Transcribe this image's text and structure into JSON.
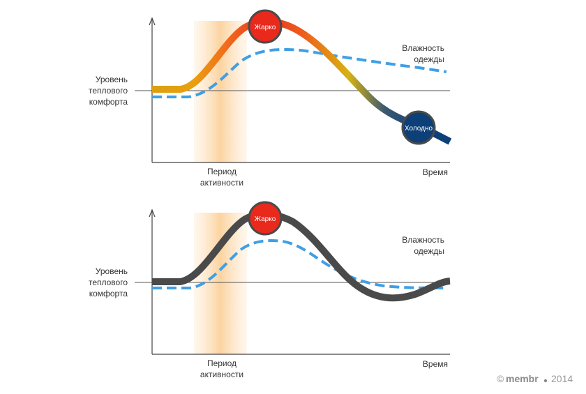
{
  "colors": {
    "axis": "#444444",
    "comfort_line": "#666666",
    "activity_band": "#fcd9a8",
    "humidity": "#3f9fe6",
    "temp_hot": "#e8341f",
    "temp_warm": "#f07a1a",
    "temp_mid": "#d6a312",
    "temp_cold": "#0d3f78",
    "temp_gray": "#4a4a4a",
    "hot_circle": "#e8291c",
    "cold_circle": "#0d3f78",
    "circle_ring": "#4a4a4a"
  },
  "top": {
    "y_label": [
      "Уровень",
      "теплового",
      "комфорта"
    ],
    "x_label": "Время",
    "activity_label": [
      "Период",
      "активности"
    ],
    "humidity_label": [
      "Влажность",
      "одежды"
    ],
    "hot_label": "Жарко",
    "cold_label": "Холодно"
  },
  "bottom": {
    "y_label": [
      "Уровень",
      "теплового",
      "комфорта"
    ],
    "x_label": "Время",
    "activity_label": [
      "Период",
      "активности"
    ],
    "humidity_label": [
      "Влажность",
      "одежды"
    ],
    "hot_label": "Жарко"
  },
  "footer": {
    "copyright_symbol": "©",
    "brand": "membr",
    "year": "2014"
  }
}
